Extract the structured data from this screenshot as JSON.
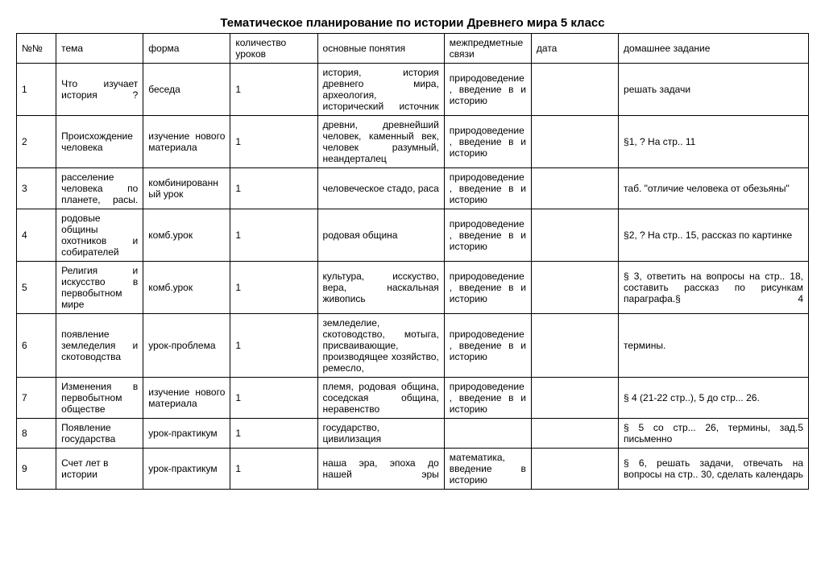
{
  "title": "Тематическое планирование по истории Древнего мира 5 класс",
  "columns": [
    "№№",
    "тема",
    "форма",
    "количество уроков",
    "основные понятия",
    "межпредметные связи",
    "дата",
    "домашнее задание"
  ],
  "rows": [
    {
      "num": "1",
      "tema": "Что изучает история ?",
      "forma": "беседа",
      "kol": "1",
      "pon": "история, история древнего мира, археология, исторический источник",
      "mezh": "природоведение, введение в и историю",
      "data": "",
      "dz": "решать задачи"
    },
    {
      "num": "2",
      "tema": "Происхождение человека",
      "forma": "изучение нового материала",
      "kol": "1",
      "pon": "древни, древнейший человек, каменный век, человек разумный, неандерталец",
      "mezh": "природоведение, введение в и историю",
      "data": "",
      "dz": "§1, ? На стр.. 11"
    },
    {
      "num": "3",
      "tema": "расселение человека по планете, расы.",
      "forma": "комбинированный урок",
      "kol": "1",
      "pon": "человеческое стадо, раса",
      "mezh": "природоведение, введение в и историю",
      "data": "",
      "dz": "таб. \"отличие человека от обезьяны\""
    },
    {
      "num": "4",
      "tema": "родовые общины охотников и собирателей",
      "forma": "комб.урок",
      "kol": "1",
      "pon": "родовая община",
      "mezh": "природоведение, введение в и историю",
      "data": "",
      "dz": "§2, ? На стр.. 15, рассказ по картинке"
    },
    {
      "num": "5",
      "tema": "Религия и искусство в первобытном мире",
      "forma": "комб.урок",
      "kol": "1",
      "pon": "культура, исскуство, вера, наскальная живопись",
      "mezh": "природоведение, введение в и историю",
      "data": "",
      "dz": "§ 3, ответить на вопросы на стр.. 18, составить рассказ по рисункам параграфа.§ 4"
    },
    {
      "num": "6",
      "tema": "появление земледелия и скотоводства",
      "forma": "урок-проблема",
      "kol": "1",
      "pon": "земледелие, скотоводство, мотыга, присваивающие, производящее хозяйство, ремесло,",
      "mezh": "природоведение, введение в и историю",
      "data": "",
      "dz": "термины."
    },
    {
      "num": "7",
      "tema": "Изменения в первобытном обществе",
      "forma": "изучение нового материала",
      "kol": "1",
      "pon": "племя, родовая община, соседская община, неравенство",
      "mezh": "природоведение, введение в и историю",
      "data": "",
      "dz": "§ 4 (21-22 стр..), 5 до стр... 26."
    },
    {
      "num": "8",
      "tema": "Появление государства",
      "forma": "урок-практикум",
      "kol": "1",
      "pon": "государство, цивилизация",
      "mezh": "",
      "data": "",
      "dz": "§ 5 со стр... 26, термины, зад.5 письменно"
    },
    {
      "num": "9",
      "tema": "Счет лет в истории",
      "forma": "урок-практикум",
      "kol": "1",
      "pon": "наша эра, эпоха до нашей эры",
      "mezh": "математика, введение в историю",
      "data": "",
      "dz": "§ 6, решать задачи, отвечать на вопросы на стр.. 30, сделать календарь"
    }
  ]
}
